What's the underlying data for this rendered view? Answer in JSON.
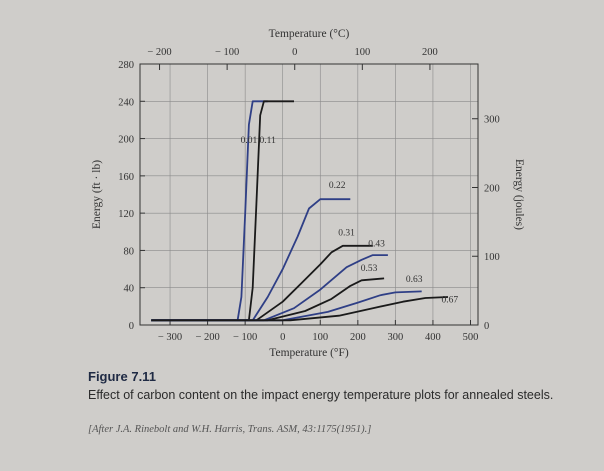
{
  "chart_data": {
    "type": "line",
    "xlabel": "Temperature (°F)",
    "ylabel": "Energy (ft · lb)",
    "top_xlabel": "Temperature (°C)",
    "right_ylabel": "Energy (joules)",
    "xlim": [
      -380,
      520
    ],
    "ylim": [
      0,
      280
    ],
    "x_ticks": [
      -300,
      -200,
      -100,
      0,
      100,
      200,
      300,
      400,
      500
    ],
    "x_tick_labels": [
      "− 300",
      "− 200",
      "− 100",
      "0",
      "100",
      "200",
      "300",
      "400",
      "500"
    ],
    "y_ticks": [
      0,
      40,
      80,
      120,
      160,
      200,
      240,
      280
    ],
    "y_tick_labels": [
      "0",
      "40",
      "80",
      "120",
      "160",
      "200",
      "240",
      "280"
    ],
    "top_ticks_c": [
      -200,
      -100,
      0,
      100,
      200
    ],
    "top_tick_labels": [
      "− 200",
      "− 100",
      "0",
      "100",
      "200"
    ],
    "right_ticks_j": [
      0,
      100,
      200,
      300
    ],
    "right_tick_labels": [
      "0",
      "100",
      "200",
      "300"
    ],
    "grid": true,
    "series": [
      {
        "name": "0.01",
        "color": "#2f3f86",
        "label_at": [
          -90,
          195
        ],
        "points": [
          [
            -350,
            5
          ],
          [
            -120,
            5
          ],
          [
            -110,
            30
          ],
          [
            -100,
            120
          ],
          [
            -90,
            215
          ],
          [
            -80,
            240
          ],
          [
            -40,
            240
          ]
        ]
      },
      {
        "name": "0.11",
        "color": "#1a1a1a",
        "label_at": [
          -40,
          195
        ],
        "points": [
          [
            -350,
            5
          ],
          [
            -90,
            5
          ],
          [
            -80,
            40
          ],
          [
            -70,
            130
          ],
          [
            -60,
            225
          ],
          [
            -50,
            240
          ],
          [
            30,
            240
          ]
        ]
      },
      {
        "name": "0.22",
        "color": "#2f3f86",
        "label_at": [
          145,
          147
        ],
        "points": [
          [
            -350,
            5
          ],
          [
            -80,
            5
          ],
          [
            -40,
            30
          ],
          [
            0,
            60
          ],
          [
            40,
            95
          ],
          [
            70,
            125
          ],
          [
            100,
            135
          ],
          [
            180,
            135
          ]
        ]
      },
      {
        "name": "0.31",
        "color": "#1a1a1a",
        "label_at": [
          170,
          96
        ],
        "points": [
          [
            -350,
            5
          ],
          [
            -70,
            5
          ],
          [
            0,
            25
          ],
          [
            50,
            45
          ],
          [
            100,
            65
          ],
          [
            130,
            78
          ],
          [
            160,
            85
          ],
          [
            240,
            85
          ]
        ]
      },
      {
        "name": "0.43",
        "color": "#2f3f86",
        "label_at": [
          250,
          84
        ],
        "points": [
          [
            -350,
            5
          ],
          [
            -50,
            5
          ],
          [
            30,
            18
          ],
          [
            100,
            38
          ],
          [
            170,
            62
          ],
          [
            210,
            70
          ],
          [
            240,
            75
          ],
          [
            280,
            75
          ]
        ]
      },
      {
        "name": "0.53",
        "color": "#1a1a1a",
        "label_at": [
          230,
          58
        ],
        "points": [
          [
            -350,
            5
          ],
          [
            -40,
            5
          ],
          [
            60,
            15
          ],
          [
            130,
            28
          ],
          [
            180,
            42
          ],
          [
            210,
            48
          ],
          [
            270,
            50
          ]
        ]
      },
      {
        "name": "0.63",
        "color": "#2f3f86",
        "label_at": [
          350,
          46
        ],
        "points": [
          [
            -350,
            5
          ],
          [
            0,
            5
          ],
          [
            120,
            14
          ],
          [
            200,
            24
          ],
          [
            260,
            32
          ],
          [
            300,
            35
          ],
          [
            370,
            36
          ]
        ]
      },
      {
        "name": "0.67",
        "color": "#1a1a1a",
        "label_at": [
          445,
          24
        ],
        "points": [
          [
            -350,
            5
          ],
          [
            20,
            5
          ],
          [
            150,
            10
          ],
          [
            240,
            18
          ],
          [
            320,
            25
          ],
          [
            380,
            29
          ],
          [
            440,
            30
          ]
        ]
      }
    ]
  },
  "caption": {
    "number": "Figure 7.11",
    "text": "Effect of carbon content on the impact energy temperature plots for annealed steels.",
    "source": "[After J.A. Rinebolt and W.H. Harris, Trans. ASM, 43:1175(1951).]"
  }
}
